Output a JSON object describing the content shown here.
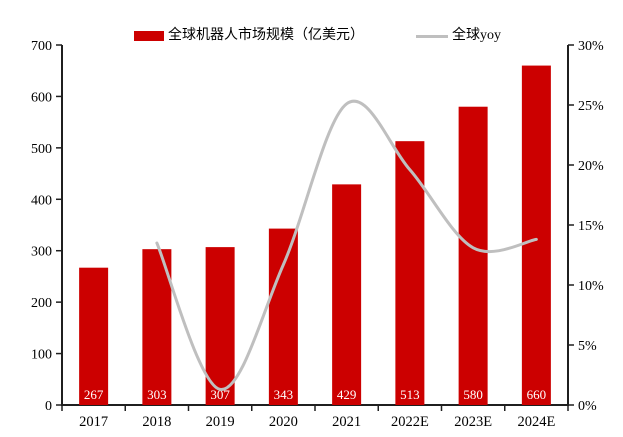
{
  "legend": {
    "bar_label": "全球机器人市场规模（亿美元）",
    "line_label": "全球yoy"
  },
  "chart_data": {
    "type": "bar",
    "subtype": "bar-with-line-overlay",
    "categories": [
      "2017",
      "2018",
      "2019",
      "2020",
      "2021",
      "2022E",
      "2023E",
      "2024E"
    ],
    "series": [
      {
        "name": "全球机器人市场规模（亿美元）",
        "type": "bar",
        "axis": "left",
        "values": [
          267,
          303,
          307,
          343,
          429,
          513,
          580,
          660
        ],
        "color": "#CC0000",
        "value_labels": [
          "267",
          "303",
          "307",
          "343",
          "429",
          "513",
          "580",
          "660"
        ],
        "value_label_color": "#FFFFFF"
      },
      {
        "name": "全球yoy",
        "type": "line",
        "axis": "right",
        "values": [
          null,
          13.5,
          1.3,
          11.7,
          25.1,
          19.6,
          13.1,
          13.8
        ],
        "color": "#BFBFBF",
        "smooth": true
      }
    ],
    "left_axis": {
      "min": 0,
      "max": 700,
      "step": 100,
      "tick_labels": [
        "0",
        "100",
        "200",
        "300",
        "400",
        "500",
        "600",
        "700"
      ]
    },
    "right_axis": {
      "min": 0,
      "max": 30,
      "step": 5,
      "suffix": "%",
      "tick_labels": [
        "0%",
        "5%",
        "10%",
        "15%",
        "20%",
        "25%",
        "30%"
      ]
    },
    "grid": false,
    "legend_position": "top",
    "title": "",
    "xlabel": "",
    "ylabel": ""
  },
  "colors": {
    "bar": "#CC0000",
    "line": "#BFBFBF",
    "axis": "#1F1F1F",
    "text": "#000000",
    "bar_label_text": "#FFFFFF"
  }
}
